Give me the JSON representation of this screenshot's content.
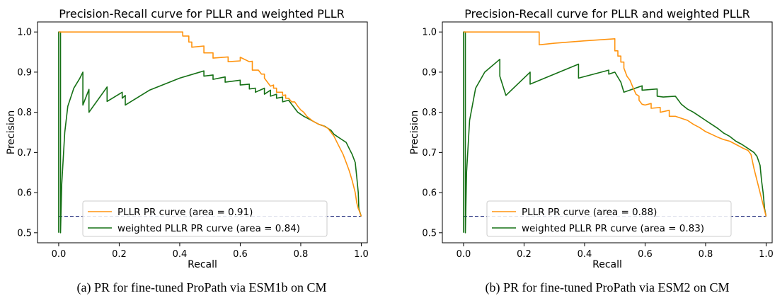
{
  "chart_data": [
    {
      "type": "line",
      "title": "Precision-Recall curve for PLLR and weighted PLLR",
      "xlabel": "Recall",
      "ylabel": "Precision",
      "xlim": [
        -0.07,
        1.02
      ],
      "ylim": [
        0.475,
        1.025
      ],
      "xticks": [
        "0.0",
        "0.2",
        "0.4",
        "0.6",
        "0.8",
        "1.0"
      ],
      "yticks": [
        "0.5",
        "0.6",
        "0.7",
        "0.8",
        "0.9",
        "1.0"
      ],
      "grid": false,
      "legend_position": "lower-center",
      "baseline": 0.541,
      "caption": "(a) PR for fine-tuned ProPath via ESM1b on CM",
      "series": [
        {
          "name": "PLLR PR curve (area = 0.91)",
          "color": "#ff9410",
          "points": [
            [
              0.0,
              1.0
            ],
            [
              0.41,
              1.0
            ],
            [
              0.41,
              0.99
            ],
            [
              0.43,
              0.99
            ],
            [
              0.43,
              0.975
            ],
            [
              0.44,
              0.975
            ],
            [
              0.44,
              0.962
            ],
            [
              0.48,
              0.965
            ],
            [
              0.48,
              0.948
            ],
            [
              0.51,
              0.948
            ],
            [
              0.51,
              0.935
            ],
            [
              0.56,
              0.938
            ],
            [
              0.56,
              0.926
            ],
            [
              0.6,
              0.928
            ],
            [
              0.6,
              0.937
            ],
            [
              0.63,
              0.926
            ],
            [
              0.64,
              0.927
            ],
            [
              0.64,
              0.905
            ],
            [
              0.66,
              0.905
            ],
            [
              0.67,
              0.895
            ],
            [
              0.68,
              0.895
            ],
            [
              0.68,
              0.885
            ],
            [
              0.69,
              0.875
            ],
            [
              0.7,
              0.865
            ],
            [
              0.71,
              0.868
            ],
            [
              0.71,
              0.86
            ],
            [
              0.72,
              0.86
            ],
            [
              0.72,
              0.85
            ],
            [
              0.74,
              0.85
            ],
            [
              0.74,
              0.842
            ],
            [
              0.75,
              0.843
            ],
            [
              0.75,
              0.835
            ],
            [
              0.76,
              0.835
            ],
            [
              0.77,
              0.826
            ],
            [
              0.78,
              0.826
            ],
            [
              0.79,
              0.815
            ],
            [
              0.8,
              0.806
            ],
            [
              0.81,
              0.8
            ],
            [
              0.82,
              0.79
            ],
            [
              0.83,
              0.784
            ],
            [
              0.84,
              0.778
            ],
            [
              0.85,
              0.774
            ],
            [
              0.86,
              0.77
            ],
            [
              0.87,
              0.768
            ],
            [
              0.88,
              0.764
            ],
            [
              0.89,
              0.76
            ],
            [
              0.9,
              0.75
            ],
            [
              0.91,
              0.74
            ],
            [
              0.92,
              0.725
            ],
            [
              0.93,
              0.71
            ],
            [
              0.94,
              0.695
            ],
            [
              0.95,
              0.675
            ],
            [
              0.96,
              0.655
            ],
            [
              0.97,
              0.63
            ],
            [
              0.98,
              0.6
            ],
            [
              0.985,
              0.575
            ],
            [
              0.99,
              0.56
            ],
            [
              0.993,
              0.555
            ],
            [
              1.0,
              0.541
            ]
          ]
        },
        {
          "name": "weighted PLLR PR curve (area = 0.84)",
          "color": "#157015",
          "points": [
            [
              0.0,
              0.5
            ],
            [
              0.0,
              1.0
            ],
            [
              0.006,
              1.0
            ],
            [
              0.006,
              0.5
            ],
            [
              0.01,
              0.62
            ],
            [
              0.02,
              0.75
            ],
            [
              0.03,
              0.815
            ],
            [
              0.05,
              0.86
            ],
            [
              0.07,
              0.885
            ],
            [
              0.08,
              0.9
            ],
            [
              0.08,
              0.818
            ],
            [
              0.1,
              0.857
            ],
            [
              0.1,
              0.8
            ],
            [
              0.16,
              0.863
            ],
            [
              0.16,
              0.827
            ],
            [
              0.21,
              0.85
            ],
            [
              0.21,
              0.835
            ],
            [
              0.22,
              0.842
            ],
            [
              0.22,
              0.818
            ],
            [
              0.3,
              0.855
            ],
            [
              0.4,
              0.885
            ],
            [
              0.48,
              0.903
            ],
            [
              0.48,
              0.89
            ],
            [
              0.51,
              0.893
            ],
            [
              0.51,
              0.882
            ],
            [
              0.55,
              0.888
            ],
            [
              0.55,
              0.875
            ],
            [
              0.6,
              0.88
            ],
            [
              0.6,
              0.868
            ],
            [
              0.63,
              0.87
            ],
            [
              0.63,
              0.858
            ],
            [
              0.65,
              0.86
            ],
            [
              0.65,
              0.85
            ],
            [
              0.68,
              0.86
            ],
            [
              0.68,
              0.845
            ],
            [
              0.7,
              0.855
            ],
            [
              0.7,
              0.84
            ],
            [
              0.72,
              0.845
            ],
            [
              0.72,
              0.835
            ],
            [
              0.74,
              0.838
            ],
            [
              0.74,
              0.826
            ],
            [
              0.76,
              0.83
            ],
            [
              0.77,
              0.82
            ],
            [
              0.78,
              0.81
            ],
            [
              0.79,
              0.8
            ],
            [
              0.81,
              0.79
            ],
            [
              0.83,
              0.782
            ],
            [
              0.84,
              0.778
            ],
            [
              0.85,
              0.774
            ],
            [
              0.86,
              0.77
            ],
            [
              0.88,
              0.765
            ],
            [
              0.9,
              0.755
            ],
            [
              0.91,
              0.745
            ],
            [
              0.92,
              0.74
            ],
            [
              0.93,
              0.735
            ],
            [
              0.95,
              0.725
            ],
            [
              0.96,
              0.71
            ],
            [
              0.97,
              0.695
            ],
            [
              0.98,
              0.675
            ],
            [
              0.985,
              0.64
            ],
            [
              0.99,
              0.6
            ],
            [
              0.992,
              0.56
            ],
            [
              1.0,
              0.541
            ]
          ]
        }
      ]
    },
    {
      "type": "line",
      "title": "Precision-Recall curve for PLLR and weighted PLLR",
      "xlabel": "Recall",
      "ylabel": "Precision",
      "xlim": [
        -0.07,
        1.02
      ],
      "ylim": [
        0.475,
        1.025
      ],
      "xticks": [
        "0.0",
        "0.2",
        "0.4",
        "0.6",
        "0.8",
        "1.0"
      ],
      "yticks": [
        "0.5",
        "0.6",
        "0.7",
        "0.8",
        "0.9",
        "1.0"
      ],
      "grid": false,
      "legend_position": "lower-center",
      "baseline": 0.541,
      "caption": "(b) PR for fine-tuned ProPath via ESM2 on CM",
      "series": [
        {
          "name": "PLLR PR curve (area = 0.88)",
          "color": "#ff9410",
          "points": [
            [
              0.0,
              1.0
            ],
            [
              0.25,
              1.0
            ],
            [
              0.25,
              0.968
            ],
            [
              0.3,
              0.972
            ],
            [
              0.4,
              0.978
            ],
            [
              0.5,
              0.983
            ],
            [
              0.5,
              0.953
            ],
            [
              0.51,
              0.953
            ],
            [
              0.51,
              0.94
            ],
            [
              0.52,
              0.94
            ],
            [
              0.52,
              0.925
            ],
            [
              0.53,
              0.925
            ],
            [
              0.53,
              0.91
            ],
            [
              0.54,
              0.89
            ],
            [
              0.55,
              0.88
            ],
            [
              0.56,
              0.862
            ],
            [
              0.57,
              0.845
            ],
            [
              0.58,
              0.84
            ],
            [
              0.58,
              0.83
            ],
            [
              0.59,
              0.82
            ],
            [
              0.6,
              0.818
            ],
            [
              0.62,
              0.822
            ],
            [
              0.62,
              0.81
            ],
            [
              0.65,
              0.812
            ],
            [
              0.65,
              0.8
            ],
            [
              0.68,
              0.805
            ],
            [
              0.68,
              0.79
            ],
            [
              0.7,
              0.79
            ],
            [
              0.72,
              0.785
            ],
            [
              0.74,
              0.78
            ],
            [
              0.76,
              0.77
            ],
            [
              0.78,
              0.762
            ],
            [
              0.8,
              0.752
            ],
            [
              0.82,
              0.745
            ],
            [
              0.84,
              0.738
            ],
            [
              0.86,
              0.732
            ],
            [
              0.88,
              0.728
            ],
            [
              0.9,
              0.72
            ],
            [
              0.92,
              0.712
            ],
            [
              0.94,
              0.705
            ],
            [
              0.95,
              0.695
            ],
            [
              0.96,
              0.66
            ],
            [
              0.97,
              0.63
            ],
            [
              0.98,
              0.6
            ],
            [
              0.99,
              0.57
            ],
            [
              1.0,
              0.541
            ]
          ]
        },
        {
          "name": "weighted PLLR PR curve (area = 0.83)",
          "color": "#157015",
          "points": [
            [
              0.0,
              0.5
            ],
            [
              0.0,
              1.0
            ],
            [
              0.006,
              1.0
            ],
            [
              0.006,
              0.5
            ],
            [
              0.01,
              0.65
            ],
            [
              0.02,
              0.78
            ],
            [
              0.04,
              0.86
            ],
            [
              0.07,
              0.9
            ],
            [
              0.12,
              0.932
            ],
            [
              0.12,
              0.89
            ],
            [
              0.14,
              0.842
            ],
            [
              0.22,
              0.9
            ],
            [
              0.22,
              0.87
            ],
            [
              0.3,
              0.895
            ],
            [
              0.38,
              0.92
            ],
            [
              0.38,
              0.885
            ],
            [
              0.48,
              0.905
            ],
            [
              0.48,
              0.895
            ],
            [
              0.5,
              0.9
            ],
            [
              0.52,
              0.875
            ],
            [
              0.53,
              0.85
            ],
            [
              0.59,
              0.866
            ],
            [
              0.59,
              0.855
            ],
            [
              0.64,
              0.858
            ],
            [
              0.64,
              0.84
            ],
            [
              0.66,
              0.838
            ],
            [
              0.7,
              0.84
            ],
            [
              0.72,
              0.82
            ],
            [
              0.74,
              0.808
            ],
            [
              0.76,
              0.8
            ],
            [
              0.78,
              0.79
            ],
            [
              0.8,
              0.78
            ],
            [
              0.82,
              0.77
            ],
            [
              0.84,
              0.76
            ],
            [
              0.86,
              0.748
            ],
            [
              0.88,
              0.74
            ],
            [
              0.9,
              0.728
            ],
            [
              0.92,
              0.72
            ],
            [
              0.94,
              0.71
            ],
            [
              0.96,
              0.7
            ],
            [
              0.97,
              0.69
            ],
            [
              0.98,
              0.668
            ],
            [
              0.985,
              0.63
            ],
            [
              0.99,
              0.6
            ],
            [
              0.995,
              0.56
            ],
            [
              1.0,
              0.541
            ]
          ]
        }
      ]
    }
  ]
}
